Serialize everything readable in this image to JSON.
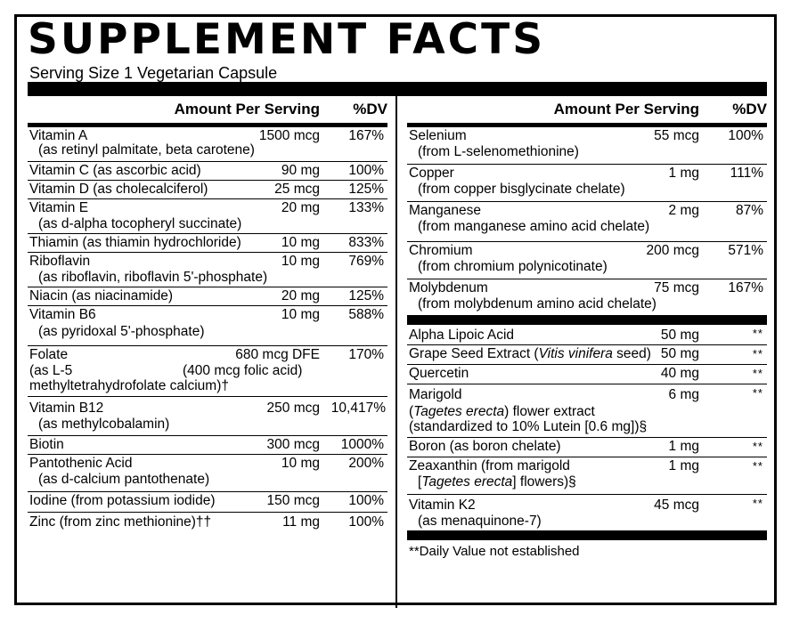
{
  "title": "SUPPLEMENT FACTS",
  "serving": "Serving Size 1 Vegetarian Capsule",
  "header": {
    "amount": "Amount Per Serving",
    "dv": "%DV"
  },
  "left": [
    {
      "name": "Vitamin A",
      "sub": "(as retinyl palmitate, beta carotene)",
      "amount": "1500 mcg",
      "dv": "167%"
    },
    {
      "name": "Vitamin C (as ascorbic acid)",
      "amount": "90 mg",
      "dv": "100%"
    },
    {
      "name": "Vitamin D (as cholecalciferol)",
      "amount": "25 mcg",
      "dv": "125%"
    },
    {
      "name": "Vitamin E",
      "sub": "(as d-alpha tocopheryl succinate)",
      "amount": "20 mg",
      "dv": "133%"
    },
    {
      "name": "Thiamin (as thiamin hydrochloride)",
      "amount": "10 mg",
      "dv": "833%"
    },
    {
      "name": "Riboflavin",
      "sub": "(as riboflavin, riboflavin 5'-phosphate)",
      "amount": "10 mg",
      "dv": "769%"
    },
    {
      "name": "Niacin (as niacinamide)",
      "amount": "20 mg",
      "dv": "125%"
    },
    {
      "name": "Vitamin B6",
      "sub": "(as pyridoxal 5'-phosphate)",
      "amount": "10 mg",
      "dv": "588%"
    },
    {
      "name": "Folate",
      "line2": "(as L-5",
      "line2b": "(400 mcg folic acid)",
      "line3": "methyltetrahydrofolate calcium)†",
      "amount": "680 mcg DFE",
      "dv": "170%"
    },
    {
      "name": "Vitamin B12",
      "sub": "(as methylcobalamin)",
      "amount": "250 mcg",
      "dv": "10,417%"
    },
    {
      "name": "Biotin",
      "amount": "300 mcg",
      "dv": "1000%"
    },
    {
      "name": "Pantothenic Acid",
      "sub": "(as d-calcium pantothenate)",
      "amount": "10 mg",
      "dv": "200%"
    },
    {
      "name": "Iodine (from potassium iodide)",
      "amount": "150 mcg",
      "dv": "100%"
    },
    {
      "name": "Zinc (from zinc methionine)††",
      "amount": "11 mg",
      "dv": "100%"
    }
  ],
  "right_top": [
    {
      "name": "Selenium",
      "sub": "(from L-selenomethionine)",
      "amount": "55 mcg",
      "dv": "100%"
    },
    {
      "name": "Copper",
      "sub": "(from copper bisglycinate chelate)",
      "amount": "1 mg",
      "dv": "111%"
    },
    {
      "name": "Manganese",
      "sub": "(from manganese amino acid chelate)",
      "amount": "2 mg",
      "dv": "87%"
    },
    {
      "name": "Chromium",
      "sub": "(from chromium polynicotinate)",
      "amount": "200 mcg",
      "dv": "571%"
    },
    {
      "name": "Molybdenum",
      "sub": "(from molybdenum amino acid chelate)",
      "amount": "75 mcg",
      "dv": "167%"
    }
  ],
  "right_bottom": [
    {
      "name": "Alpha Lipoic Acid",
      "amount": "50 mg",
      "dv": "**"
    },
    {
      "name_pre": "Grape Seed Extract (",
      "name_it": "Vitis vinifera",
      "name_post": " seed)",
      "amount": "50 mg",
      "dv": "**"
    },
    {
      "name": "Quercetin",
      "amount": "40 mg",
      "dv": "**"
    },
    {
      "name": "Marigold",
      "l2_pre": "(",
      "l2_it": "Tagetes erecta",
      "l2_post": ") flower extract",
      "l3": "(standardized to 10% Lutein [0.6 mg])§",
      "amount": "6 mg",
      "dv": "**"
    },
    {
      "name": "Boron (as boron chelate)",
      "amount": "1 mg",
      "dv": "**"
    },
    {
      "name": "Zeaxanthin (from marigold",
      "l2_pre": "[",
      "l2_it": "Tagetes erecta",
      "l2_post": "] flowers)§",
      "amount": "1 mg",
      "dv": "**"
    },
    {
      "name": "Vitamin K2",
      "sub": "(as menaquinone-7)",
      "amount": "45 mcg",
      "dv": "**"
    }
  ],
  "footnote": "**Daily Value not established"
}
